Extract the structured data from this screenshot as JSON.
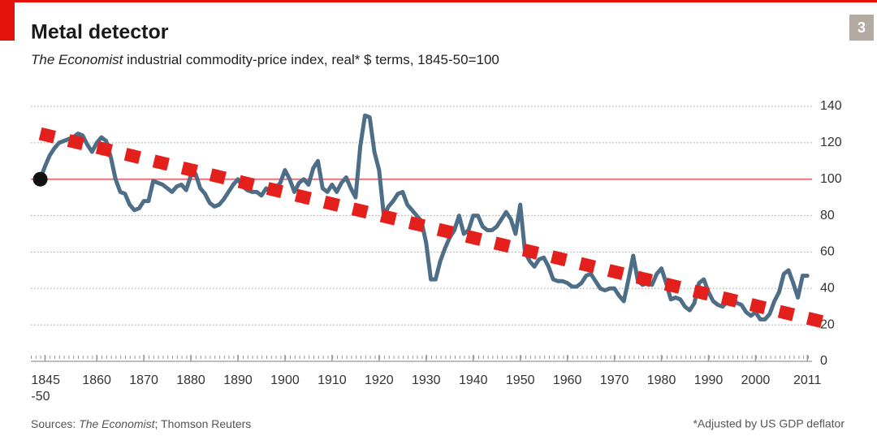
{
  "chart_data": {
    "type": "line",
    "title": "Metal detector",
    "subtitle_italic": "The Economist",
    "subtitle_rest": " industrial commodity-price index, real* $ terms, 1845-50=100",
    "source_prefix": "Sources: ",
    "source_italic": "The Economist",
    "source_rest": "; Thomson Reuters",
    "footnote": "*Adjusted by US GDP deflator",
    "page_number": "3",
    "x": [
      1848,
      1849,
      1850,
      1851,
      1852,
      1853,
      1854,
      1855,
      1856,
      1857,
      1858,
      1859,
      1860,
      1861,
      1862,
      1863,
      1864,
      1865,
      1866,
      1867,
      1868,
      1869,
      1870,
      1871,
      1872,
      1873,
      1874,
      1875,
      1876,
      1877,
      1878,
      1879,
      1880,
      1881,
      1882,
      1883,
      1884,
      1885,
      1886,
      1887,
      1888,
      1889,
      1890,
      1891,
      1892,
      1893,
      1894,
      1895,
      1896,
      1897,
      1898,
      1899,
      1900,
      1901,
      1902,
      1903,
      1904,
      1905,
      1906,
      1907,
      1908,
      1909,
      1910,
      1911,
      1912,
      1913,
      1914,
      1915,
      1916,
      1917,
      1918,
      1919,
      1920,
      1921,
      1922,
      1923,
      1924,
      1925,
      1926,
      1927,
      1928,
      1929,
      1930,
      1931,
      1932,
      1933,
      1934,
      1935,
      1936,
      1937,
      1938,
      1939,
      1940,
      1941,
      1942,
      1943,
      1944,
      1945,
      1946,
      1947,
      1948,
      1949,
      1950,
      1951,
      1952,
      1953,
      1954,
      1955,
      1956,
      1957,
      1958,
      1959,
      1960,
      1961,
      1962,
      1963,
      1964,
      1965,
      1966,
      1967,
      1968,
      1969,
      1970,
      1971,
      1972,
      1973,
      1974,
      1975,
      1976,
      1977,
      1978,
      1979,
      1980,
      1981,
      1982,
      1983,
      1984,
      1985,
      1986,
      1987,
      1988,
      1989,
      1990,
      1991,
      1992,
      1993,
      1994,
      1995,
      1996,
      1997,
      1998,
      1999,
      2000,
      2001,
      2002,
      2003,
      2004,
      2005,
      2006,
      2007,
      2008,
      2009,
      2010,
      2011
    ],
    "series": [
      {
        "color": "#4d6e86",
        "values": [
          100,
          107,
          113,
          117,
          120,
          121,
          122,
          123,
          125,
          124,
          119,
          115,
          120,
          123,
          121,
          112,
          100,
          93,
          92,
          86,
          83,
          84,
          88,
          88,
          99,
          98,
          97,
          95,
          93,
          96,
          97,
          94,
          102,
          103,
          95,
          92,
          87,
          85,
          86,
          89,
          93,
          97,
          100,
          96,
          94,
          93,
          93,
          91,
          95,
          93,
          95,
          98,
          105,
          100,
          93,
          98,
          100,
          97,
          106,
          110,
          95,
          93,
          97,
          93,
          98,
          101,
          95,
          90,
          118,
          135,
          134,
          115,
          105,
          80,
          85,
          88,
          92,
          93,
          86,
          83,
          80,
          77,
          65,
          45,
          45,
          55,
          62,
          68,
          72,
          80,
          70,
          72,
          80,
          80,
          74,
          72,
          72,
          74,
          78,
          82,
          78,
          70,
          86,
          60,
          55,
          52,
          56,
          57,
          52,
          45,
          44,
          44,
          43,
          41,
          41,
          43,
          47,
          48,
          44,
          40,
          39,
          40,
          40,
          36,
          33,
          45,
          58,
          44,
          42,
          43,
          42,
          48,
          51,
          43,
          34,
          35,
          34,
          30,
          28,
          32,
          43,
          45,
          38,
          33,
          31,
          30,
          33,
          36,
          32,
          31,
          27,
          25,
          27,
          23,
          23,
          26,
          33,
          38,
          48,
          50,
          43,
          35,
          47,
          47
        ]
      }
    ],
    "trend": {
      "color": "#e3201b",
      "x": [
        1848,
        2017
      ],
      "y": [
        125,
        20
      ]
    },
    "reference_line": {
      "value": 100,
      "color": "#e8747a"
    },
    "xlim": [
      1846,
      2012
    ],
    "xticks": [
      {
        "value": 1849,
        "label": "1845\n-50"
      },
      1860,
      1870,
      1880,
      1890,
      1900,
      1910,
      1920,
      1930,
      1940,
      1950,
      1960,
      1970,
      1980,
      1990,
      2000,
      2011
    ],
    "ylim": [
      0,
      140
    ],
    "yticks": [
      0,
      20,
      40,
      60,
      80,
      100,
      120,
      140
    ],
    "grid": true
  }
}
